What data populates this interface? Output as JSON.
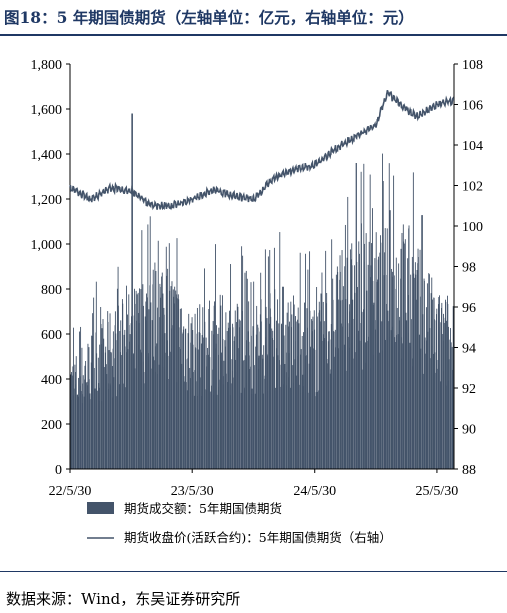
{
  "figure": {
    "title": "图18：5 年期国债期货（左轴单位：亿元，右轴单位：元）",
    "source": "数据来源：Wind，东吴证券研究所"
  },
  "chart_data": {
    "type": "bar+line",
    "title": "图18：5 年期国债期货（左轴单位：亿元，右轴单位：元）",
    "x_ticks": [
      "22/5/30",
      "23/5/30",
      "24/5/30",
      "25/5/30"
    ],
    "y_left": {
      "range": [
        0,
        1800
      ],
      "ticks": [
        "0",
        "200",
        "400",
        "600",
        "800",
        "1,000",
        "1,200",
        "1,400",
        "1,600",
        "1,800"
      ]
    },
    "y_right": {
      "range": [
        88,
        108
      ],
      "ticks": [
        "88",
        "90",
        "92",
        "94",
        "96",
        "98",
        "100",
        "102",
        "104",
        "106",
        "108"
      ]
    },
    "legend": {
      "placement": "bottom"
    },
    "series": [
      {
        "name": "期货成交额：5年期国债期货",
        "kind": "bar",
        "axis": "left",
        "color": "#44546a",
        "x": [
          "22/5/30",
          "22/8/30",
          "22/11/30",
          "23/2/28",
          "23/5/30",
          "23/8/30",
          "23/11/30",
          "24/2/28",
          "24/5/30",
          "24/8/30",
          "24/11/30",
          "25/2/28",
          "25/5/30",
          "25/7/15"
        ],
        "values": [
          380,
          520,
          620,
          760,
          560,
          600,
          580,
          640,
          560,
          780,
          820,
          860,
          620,
          600
        ],
        "peaks": [
          [
            "22/12/1",
            1580
          ],
          [
            "24/9/30",
            1360
          ],
          [
            "24/12/20",
            1280
          ],
          [
            "25/1/10",
            1150
          ]
        ]
      },
      {
        "name": "期货收盘价(活跃合约)：5年期国债期货（右轴）",
        "kind": "line",
        "axis": "right",
        "color": "#44546a",
        "x": [
          "22/5/30",
          "22/7/30",
          "22/9/30",
          "22/11/30",
          "23/1/30",
          "23/3/30",
          "23/5/30",
          "23/7/30",
          "23/9/30",
          "23/11/30",
          "24/1/30",
          "24/3/30",
          "24/5/30",
          "24/7/30",
          "24/9/30",
          "24/11/30",
          "25/1/2",
          "25/2/15",
          "25/3/30",
          "25/5/30",
          "25/7/15"
        ],
        "values": [
          101.9,
          101.3,
          101.9,
          101.7,
          101.0,
          101.0,
          101.3,
          101.8,
          101.5,
          101.3,
          102.4,
          102.8,
          103.0,
          103.8,
          104.4,
          105.0,
          106.6,
          105.9,
          105.4,
          106.0,
          106.2
        ]
      }
    ]
  }
}
